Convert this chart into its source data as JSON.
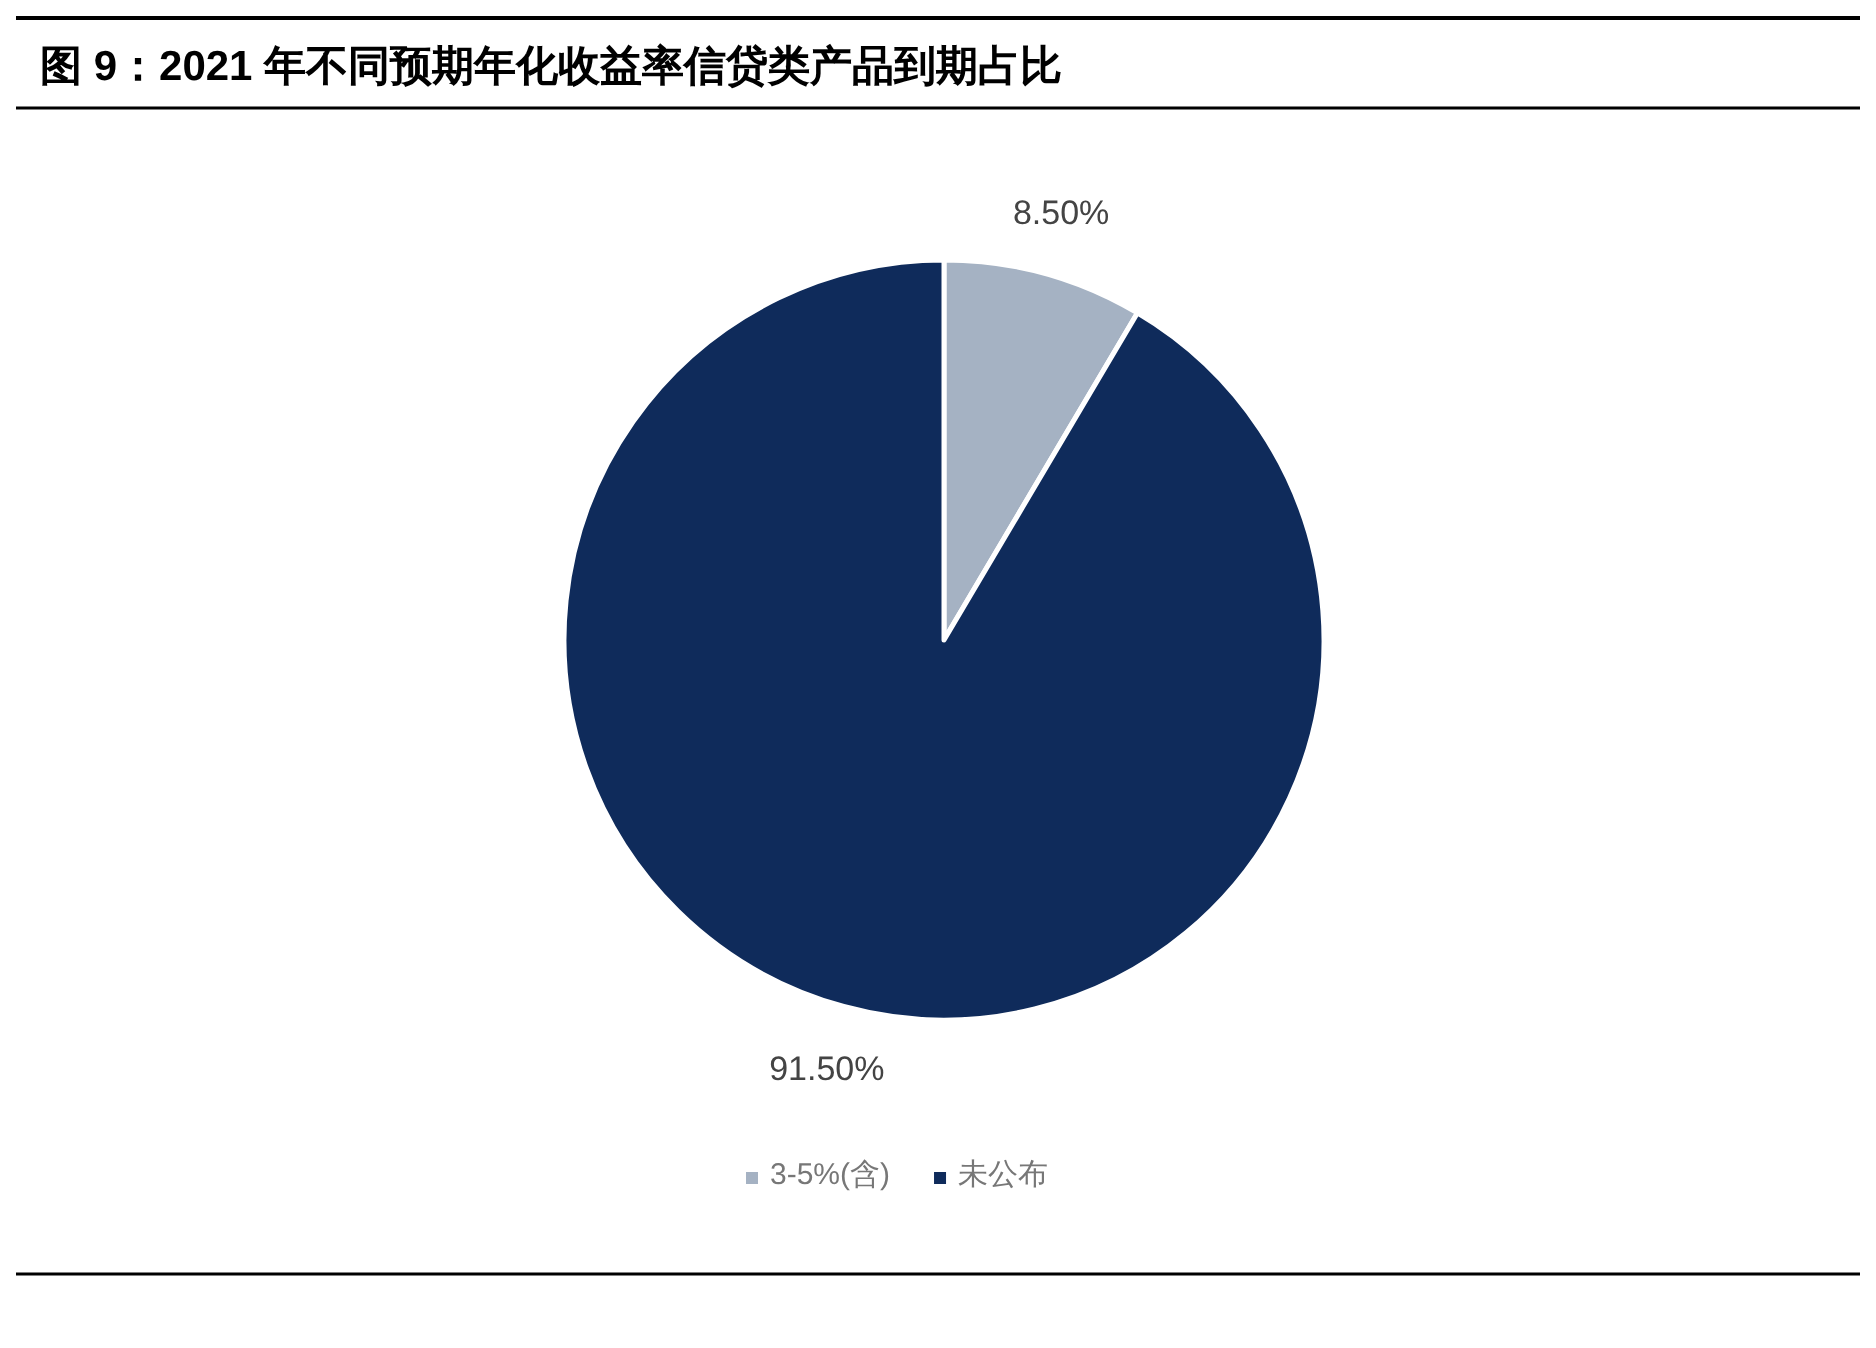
{
  "chart_data": {
    "type": "pie",
    "title": "图 9：2021 年不同预期年化收益率信贷类产品到期占比",
    "categories": [
      "3-5%(含)",
      "未公布"
    ],
    "values": [
      8.5,
      91.5
    ],
    "value_labels": [
      "8.50%",
      "91.50%"
    ],
    "colors": [
      "#a5b2c3",
      "#0f2b5b"
    ],
    "legend": "bottom"
  }
}
